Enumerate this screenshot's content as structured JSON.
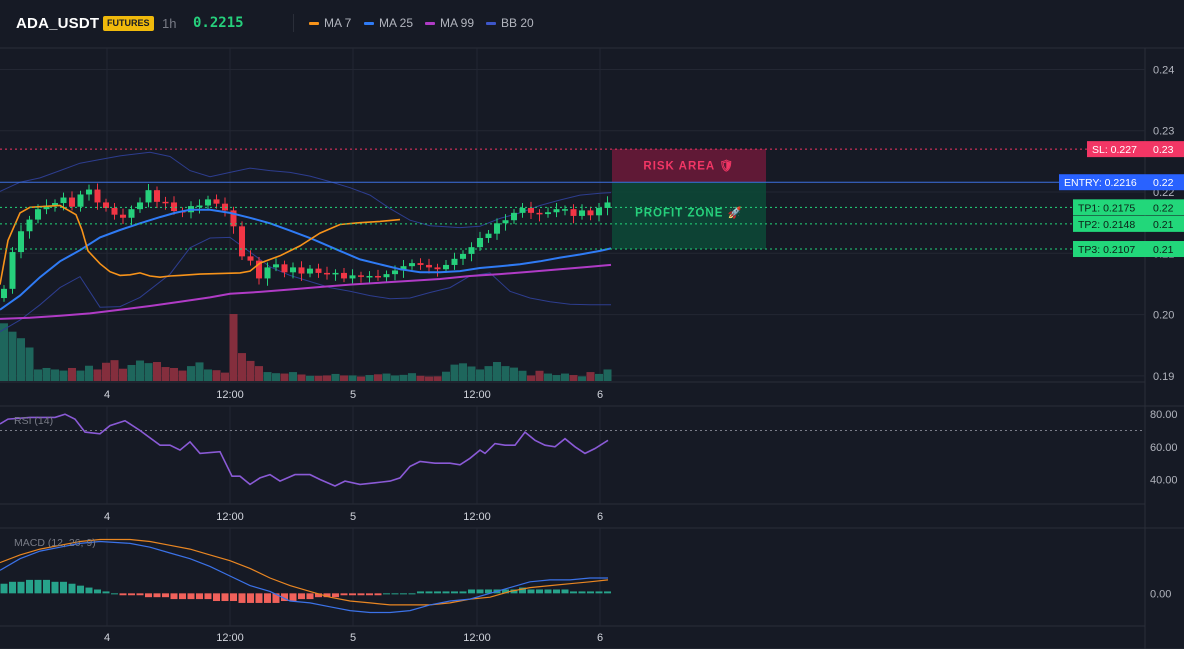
{
  "header": {
    "symbol": "ADA_USDT",
    "badge": "FUTURES",
    "timeframe": "1h",
    "price": "0.2215",
    "legend": [
      {
        "label": "MA 7",
        "color": "#f7931a"
      },
      {
        "label": "MA 25",
        "color": "#2f7bf5"
      },
      {
        "label": "MA 99",
        "color": "#b03bc6"
      },
      {
        "label": "BB 20",
        "color": "#3d56c9"
      }
    ]
  },
  "colors": {
    "up": "#26d07c",
    "down": "#f23645",
    "bg": "#161a25",
    "grid": "#232733",
    "sl": "#f23665",
    "entry": "#2962ff",
    "tp": "#22d77a"
  },
  "chart_data": [
    {
      "type": "candlestick",
      "title": "ADA_USDT 1h",
      "ylim": [
        0.189,
        0.2435
      ],
      "y_ticks": [
        "0.24",
        "0.23",
        "0.22",
        "0.21",
        "0.20",
        "0.19"
      ],
      "x_ticks": [
        "4",
        "12:00",
        "5",
        "12:00",
        "6"
      ],
      "close": [
        0.2042,
        0.2102,
        0.2136,
        0.2155,
        0.2172,
        0.2178,
        0.2182,
        0.2191,
        0.2176,
        0.2196,
        0.2204,
        0.2183,
        0.2174,
        0.2163,
        0.2158,
        0.2172,
        0.2183,
        0.2203,
        0.2184,
        0.2183,
        0.2169,
        0.2167,
        0.2177,
        0.2178,
        0.2188,
        0.2181,
        0.217,
        0.2144,
        0.2095,
        0.2088,
        0.2059,
        0.2077,
        0.2082,
        0.2069,
        0.2077,
        0.2067,
        0.2075,
        0.2068,
        0.2067,
        0.2068,
        0.2059,
        0.2064,
        0.2062,
        0.2063,
        0.2061,
        0.2066,
        0.2072,
        0.2079,
        0.2084,
        0.2081,
        0.2077,
        0.2074,
        0.2081,
        0.2091,
        0.2099,
        0.211,
        0.2125,
        0.2132,
        0.2149,
        0.2154,
        0.2166,
        0.2174,
        0.2166,
        0.2164,
        0.2167,
        0.2172,
        0.2172,
        0.2161,
        0.217,
        0.2162,
        0.2174,
        0.2183
      ],
      "volume": [
        310,
        265,
        230,
        180,
        62,
        70,
        62,
        56,
        70,
        56,
        82,
        62,
        98,
        112,
        66,
        86,
        110,
        96,
        102,
        75,
        70,
        56,
        80,
        100,
        62,
        58,
        45,
        360,
        150,
        108,
        80,
        48,
        42,
        40,
        48,
        35,
        28,
        28,
        30,
        38,
        30,
        30,
        24,
        32,
        36,
        40,
        30,
        33,
        42,
        28,
        24,
        25,
        50,
        88,
        95,
        78,
        62,
        80,
        102,
        80,
        72,
        55,
        30,
        55,
        40,
        32,
        40,
        32,
        25,
        48,
        38,
        62
      ],
      "ma7": [
        [
          0,
          0.2049
        ],
        [
          8,
          0.2121
        ],
        [
          20,
          0.2166
        ],
        [
          30,
          0.2175
        ],
        [
          60,
          0.2178
        ],
        [
          76,
          0.2163
        ],
        [
          82,
          0.2138
        ],
        [
          88,
          0.2104
        ],
        [
          100,
          0.2083
        ],
        [
          110,
          0.207
        ],
        [
          120,
          0.2064
        ],
        [
          130,
          0.2065
        ],
        [
          140,
          0.2068
        ],
        [
          150,
          0.2063
        ],
        [
          160,
          0.2061
        ],
        [
          170,
          0.2063
        ],
        [
          180,
          0.2064
        ],
        [
          200,
          0.2066
        ],
        [
          240,
          0.2068
        ],
        [
          250,
          0.2071
        ],
        [
          260,
          0.2084
        ],
        [
          280,
          0.2096
        ],
        [
          300,
          0.2112
        ],
        [
          320,
          0.2133
        ],
        [
          340,
          0.2147
        ],
        [
          360,
          0.215
        ],
        [
          380,
          0.2152
        ],
        [
          400,
          0.2155
        ]
      ],
      "ma25": [
        [
          0,
          0.2008
        ],
        [
          20,
          0.2031
        ],
        [
          40,
          0.2061
        ],
        [
          60,
          0.2087
        ],
        [
          80,
          0.2105
        ],
        [
          100,
          0.2126
        ],
        [
          120,
          0.2138
        ],
        [
          140,
          0.2149
        ],
        [
          160,
          0.2159
        ],
        [
          175,
          0.2166
        ],
        [
          190,
          0.2171
        ],
        [
          210,
          0.2171
        ],
        [
          230,
          0.2166
        ],
        [
          250,
          0.2158
        ],
        [
          270,
          0.2149
        ],
        [
          290,
          0.2137
        ],
        [
          310,
          0.2125
        ],
        [
          320,
          0.2118
        ],
        [
          340,
          0.2104
        ],
        [
          360,
          0.209
        ],
        [
          380,
          0.2082
        ],
        [
          400,
          0.2074
        ],
        [
          420,
          0.2069
        ],
        [
          440,
          0.2069
        ],
        [
          460,
          0.2071
        ],
        [
          480,
          0.2076
        ],
        [
          500,
          0.2079
        ],
        [
          520,
          0.2082
        ],
        [
          540,
          0.2087
        ],
        [
          560,
          0.2093
        ],
        [
          580,
          0.2098
        ],
        [
          600,
          0.2104
        ],
        [
          611,
          0.2108
        ]
      ],
      "ma99": [
        [
          0,
          0.1993
        ],
        [
          30,
          0.1995
        ],
        [
          60,
          0.1998
        ],
        [
          90,
          0.2002
        ],
        [
          120,
          0.2008
        ],
        [
          150,
          0.2014
        ],
        [
          180,
          0.2021
        ],
        [
          210,
          0.2028
        ],
        [
          230,
          0.2034
        ],
        [
          260,
          0.2037
        ],
        [
          290,
          0.2041
        ],
        [
          320,
          0.2045
        ],
        [
          350,
          0.2049
        ],
        [
          380,
          0.2052
        ],
        [
          410,
          0.2055
        ],
        [
          440,
          0.2058
        ],
        [
          470,
          0.2063
        ],
        [
          500,
          0.2066
        ],
        [
          530,
          0.207
        ],
        [
          560,
          0.2074
        ],
        [
          590,
          0.2078
        ],
        [
          611,
          0.2081
        ]
      ],
      "bb_upper": [
        [
          0,
          0.2201
        ],
        [
          20,
          0.2216
        ],
        [
          40,
          0.2223
        ],
        [
          60,
          0.2235
        ],
        [
          80,
          0.2247
        ],
        [
          100,
          0.2253
        ],
        [
          120,
          0.2259
        ],
        [
          150,
          0.2265
        ],
        [
          170,
          0.2258
        ],
        [
          190,
          0.2235
        ],
        [
          210,
          0.2225
        ],
        [
          230,
          0.2232
        ],
        [
          250,
          0.2239
        ],
        [
          270,
          0.2235
        ],
        [
          290,
          0.2232
        ],
        [
          310,
          0.2226
        ],
        [
          330,
          0.2217
        ],
        [
          350,
          0.2207
        ],
        [
          370,
          0.2195
        ],
        [
          390,
          0.2173
        ],
        [
          410,
          0.2154
        ],
        [
          430,
          0.2145
        ],
        [
          460,
          0.2142
        ],
        [
          480,
          0.2144
        ],
        [
          500,
          0.2157
        ],
        [
          520,
          0.2166
        ],
        [
          540,
          0.2178
        ],
        [
          560,
          0.2187
        ],
        [
          580,
          0.2195
        ],
        [
          600,
          0.2198
        ],
        [
          611,
          0.2199
        ]
      ],
      "bb_lower": [
        [
          0,
          0.1972
        ],
        [
          20,
          0.1991
        ],
        [
          40,
          0.2016
        ],
        [
          60,
          0.2044
        ],
        [
          80,
          0.2062
        ],
        [
          100,
          0.2012
        ],
        [
          120,
          0.2013
        ],
        [
          140,
          0.2028
        ],
        [
          170,
          0.2066
        ],
        [
          190,
          0.2109
        ],
        [
          210,
          0.2125
        ],
        [
          230,
          0.2126
        ],
        [
          250,
          0.2102
        ],
        [
          270,
          0.2078
        ],
        [
          290,
          0.2064
        ],
        [
          310,
          0.2054
        ],
        [
          330,
          0.2044
        ],
        [
          350,
          0.2038
        ],
        [
          370,
          0.2031
        ],
        [
          390,
          0.2026
        ],
        [
          410,
          0.2027
        ],
        [
          430,
          0.2036
        ],
        [
          450,
          0.2044
        ],
        [
          470,
          0.2063
        ],
        [
          490,
          0.2068
        ],
        [
          510,
          0.2038
        ],
        [
          530,
          0.2027
        ],
        [
          550,
          0.2021
        ],
        [
          570,
          0.2017
        ],
        [
          590,
          0.2016
        ],
        [
          611,
          0.2016
        ]
      ],
      "levels": [
        {
          "label": "SL: 0.227",
          "value": 0.227,
          "axis_label": "0.23",
          "kind": "sl"
        },
        {
          "label": "ENTRY: 0.2216",
          "value": 0.2216,
          "axis_label": "0.22",
          "kind": "entry"
        },
        {
          "label": "TP1: 0.2175",
          "value": 0.2175,
          "axis_label": "0.22",
          "kind": "tp"
        },
        {
          "label": "TP2: 0.2148",
          "value": 0.2148,
          "axis_label": "0.21",
          "kind": "tp"
        },
        {
          "label": "TP3: 0.2107",
          "value": 0.2107,
          "axis_label": "0.21",
          "kind": "tp"
        }
      ],
      "zones": [
        {
          "label": "RISK AREA 🛡",
          "from": 0.227,
          "to": 0.2216
        },
        {
          "label": "PROFIT ZONE 🚀",
          "from": 0.2216,
          "to": 0.2107
        }
      ]
    },
    {
      "type": "line",
      "title": "RSI (14)",
      "ylim": [
        25,
        85
      ],
      "y_ticks": [
        80,
        60,
        40
      ],
      "overbought": 70,
      "x_ticks": [
        "4",
        "12:00",
        "5",
        "12:00",
        "6"
      ],
      "values": [
        [
          0,
          74
        ],
        [
          8,
          77
        ],
        [
          30,
          78
        ],
        [
          55,
          78
        ],
        [
          65,
          80
        ],
        [
          75,
          77
        ],
        [
          85,
          69
        ],
        [
          100,
          68
        ],
        [
          110,
          73
        ],
        [
          125,
          76
        ],
        [
          140,
          70
        ],
        [
          160,
          61
        ],
        [
          170,
          61
        ],
        [
          180,
          58
        ],
        [
          190,
          63
        ],
        [
          200,
          56
        ],
        [
          220,
          57
        ],
        [
          232,
          42
        ],
        [
          240,
          42
        ],
        [
          250,
          37
        ],
        [
          260,
          41
        ],
        [
          270,
          43
        ],
        [
          280,
          39
        ],
        [
          295,
          43
        ],
        [
          310,
          43
        ],
        [
          320,
          40
        ],
        [
          335,
          36
        ],
        [
          345,
          39
        ],
        [
          360,
          37
        ],
        [
          375,
          38
        ],
        [
          390,
          39
        ],
        [
          400,
          41
        ],
        [
          410,
          48
        ],
        [
          420,
          51
        ],
        [
          435,
          50
        ],
        [
          450,
          50
        ],
        [
          460,
          49
        ],
        [
          470,
          53
        ],
        [
          480,
          58
        ],
        [
          485,
          56
        ],
        [
          495,
          62
        ],
        [
          505,
          61
        ],
        [
          515,
          61
        ],
        [
          525,
          69
        ],
        [
          535,
          64
        ],
        [
          545,
          61
        ],
        [
          555,
          60
        ],
        [
          565,
          65
        ],
        [
          575,
          60
        ],
        [
          585,
          56
        ],
        [
          595,
          59
        ],
        [
          608,
          64
        ]
      ]
    },
    {
      "type": "line",
      "title": "MACD (12, 26, 9)",
      "y_ticks": [
        0.0
      ],
      "y_tick_labels": [
        "0.00"
      ],
      "ylim": [
        -0.0017,
        0.0034
      ],
      "x_ticks": [
        "4",
        "12:00",
        "5",
        "12:00",
        "6"
      ],
      "macd": [
        [
          0,
          0.0012
        ],
        [
          20,
          0.0018
        ],
        [
          40,
          0.0022
        ],
        [
          60,
          0.0024
        ],
        [
          80,
          0.0026
        ],
        [
          100,
          0.0027
        ],
        [
          130,
          0.0026
        ],
        [
          150,
          0.0024
        ],
        [
          170,
          0.0021
        ],
        [
          190,
          0.0018
        ],
        [
          210,
          0.0014
        ],
        [
          230,
          0.0009
        ],
        [
          250,
          0.0004
        ],
        [
          270,
          0.0001
        ],
        [
          290,
          -0.0004
        ],
        [
          310,
          -0.0005
        ],
        [
          330,
          -0.0007
        ],
        [
          350,
          -0.0009
        ],
        [
          370,
          -0.001
        ],
        [
          390,
          -0.001
        ],
        [
          410,
          -0.0009
        ],
        [
          430,
          -0.0006
        ],
        [
          450,
          -0.0004
        ],
        [
          470,
          -0.0003
        ],
        [
          490,
          0.0
        ],
        [
          510,
          0.0003
        ],
        [
          530,
          0.0006
        ],
        [
          550,
          0.0007
        ],
        [
          570,
          0.0007
        ],
        [
          590,
          0.0008
        ],
        [
          608,
          0.0008
        ]
      ],
      "signal": [
        [
          0,
          0.0016
        ],
        [
          20,
          0.002
        ],
        [
          40,
          0.0023
        ],
        [
          60,
          0.0025
        ],
        [
          80,
          0.0027
        ],
        [
          100,
          0.0028
        ],
        [
          130,
          0.0028
        ],
        [
          150,
          0.0027
        ],
        [
          170,
          0.0025
        ],
        [
          190,
          0.0023
        ],
        [
          210,
          0.002
        ],
        [
          230,
          0.0017
        ],
        [
          250,
          0.0013
        ],
        [
          270,
          0.0008
        ],
        [
          290,
          0.0004
        ],
        [
          310,
          0.0001
        ],
        [
          330,
          -0.0002
        ],
        [
          350,
          -0.0004
        ],
        [
          370,
          -0.0005
        ],
        [
          390,
          -0.0006
        ],
        [
          410,
          -0.0006
        ],
        [
          430,
          -0.0006
        ],
        [
          450,
          -0.0005
        ],
        [
          470,
          -0.0003
        ],
        [
          490,
          -0.0002
        ],
        [
          510,
          0.0001
        ],
        [
          530,
          0.0003
        ],
        [
          550,
          0.0004
        ],
        [
          570,
          0.0005
        ],
        [
          590,
          0.0006
        ],
        [
          608,
          0.0007
        ]
      ],
      "histogram": [
        0.0005,
        0.0006,
        0.0006,
        0.0007,
        0.0007,
        0.0007,
        0.0006,
        0.0006,
        0.0005,
        0.0004,
        0.0003,
        0.0002,
        0.0001,
        0.0,
        -0.0001,
        -0.0001,
        -0.0001,
        -0.0002,
        -0.0002,
        -0.0002,
        -0.0003,
        -0.0003,
        -0.0003,
        -0.0003,
        -0.0003,
        -0.0004,
        -0.0004,
        -0.0004,
        -0.0005,
        -0.0005,
        -0.0005,
        -0.0005,
        -0.0005,
        -0.0004,
        -0.0004,
        -0.0003,
        -0.0003,
        -0.0002,
        -0.0002,
        -0.0002,
        -0.0001,
        -0.0001,
        -0.0001,
        -0.0001,
        -0.0001,
        0.0,
        0.0,
        0.0,
        0.0,
        0.0001,
        0.0001,
        0.0001,
        0.0001,
        0.0001,
        0.0001,
        0.0002,
        0.0002,
        0.0002,
        0.0002,
        0.0002,
        0.0002,
        0.0003,
        0.0002,
        0.0002,
        0.0002,
        0.0002,
        0.0002,
        0.0001,
        0.0001,
        0.0001,
        0.0001,
        0.0001
      ]
    }
  ]
}
